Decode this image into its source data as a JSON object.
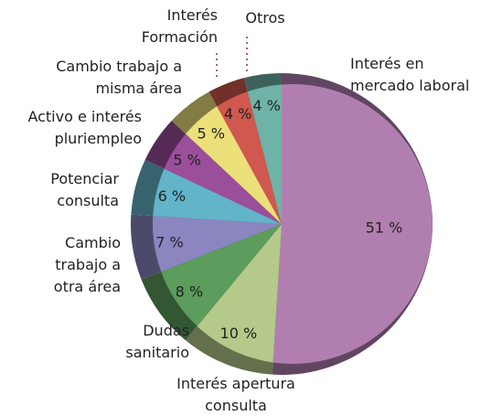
{
  "chart_data": {
    "type": "pie",
    "categories": [
      "Interés en mercado laboral",
      "Interés apertura consulta",
      "Dudas sanitario",
      "Cambio trabajo a otra área",
      "Potenciar consulta",
      "Activo e interés pluriempleo",
      "Cambio trabajo a misma área",
      "Interés Formación",
      "Otros"
    ],
    "values": [
      51,
      10,
      8,
      7,
      6,
      5,
      5,
      4,
      4
    ],
    "value_labels": [
      "51 %",
      "10 %",
      "8 %",
      "7 %",
      "6 %",
      "5 %",
      "5 %",
      "4 %",
      "4 %"
    ],
    "colors": [
      "#b07fb0",
      "#b5c98a",
      "#5c9c5c",
      "#8b86c0",
      "#62b4c8",
      "#9b4f9b",
      "#ece07a",
      "#d0584e",
      "#6fb3a8"
    ]
  }
}
